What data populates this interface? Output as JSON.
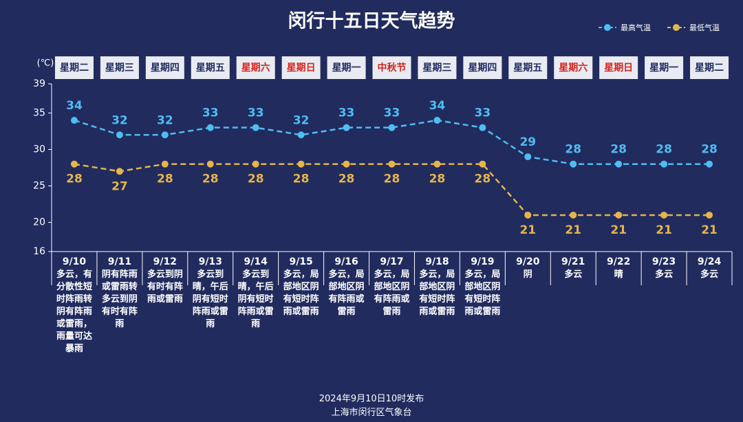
{
  "chart_data": {
    "type": "line",
    "title": "闵行十五日天气趋势",
    "y_label": "(℃)",
    "legend": "top-right",
    "categories": [
      "9/10",
      "9/11",
      "9/12",
      "9/13",
      "9/14",
      "9/15",
      "9/16",
      "9/17",
      "9/18",
      "9/19",
      "9/20",
      "9/21",
      "9/22",
      "9/23",
      "9/24"
    ],
    "weekdays": [
      "星期二",
      "星期三",
      "星期四",
      "星期五",
      "星期六",
      "星期日",
      "星期一",
      "中秋节",
      "星期三",
      "星期四",
      "星期五",
      "星期六",
      "星期日",
      "星期一",
      "星期二"
    ],
    "weekday_colors": [
      "#1e2a5e",
      "#1e2a5e",
      "#1e2a5e",
      "#1e2a5e",
      "#d8231b",
      "#d8231b",
      "#1e2a5e",
      "#d8231b",
      "#1e2a5e",
      "#1e2a5e",
      "#1e2a5e",
      "#d8231b",
      "#d8231b",
      "#1e2a5e",
      "#1e2a5e"
    ],
    "weather": [
      "多云，有分散性短时阵雨转阴有阵雨或雷雨，雨量可达暴雨",
      "阴有阵雨或雷雨转多云到阴有时有阵雨",
      "多云到阴有时有阵雨或雷雨",
      "多云到晴，午后阴有短时阵雨或雷雨",
      "多云到晴，午后阴有短时阵雨或雷雨",
      "多云，局部地区阴有短时阵雨或雷雨",
      "多云，局部地区阴有阵雨或雷雨",
      "多云，局部地区阴有阵雨或雷雨",
      "多云，局部地区阴有短时阵雨或雷雨",
      "多云，局部地区阴有短时阵雨或雷雨",
      "阴",
      "多云",
      "晴",
      "多云",
      "多云"
    ],
    "series": [
      {
        "name": "最高气温",
        "color": "#4fbdf2",
        "values": [
          34,
          32,
          32,
          33,
          33,
          32,
          33,
          33,
          34,
          33,
          29,
          28,
          28,
          28,
          28
        ]
      },
      {
        "name": "最低气温",
        "color": "#e6b54a",
        "values": [
          28,
          27,
          28,
          28,
          28,
          28,
          28,
          28,
          28,
          28,
          21,
          21,
          21,
          21,
          21
        ]
      }
    ],
    "ylim": [
      16,
      39
    ],
    "yticks": [
      16,
      20,
      25,
      30,
      35,
      39
    ],
    "source": [
      "2024年9月10日10时发布",
      "上海市闵行区气象台"
    ]
  }
}
